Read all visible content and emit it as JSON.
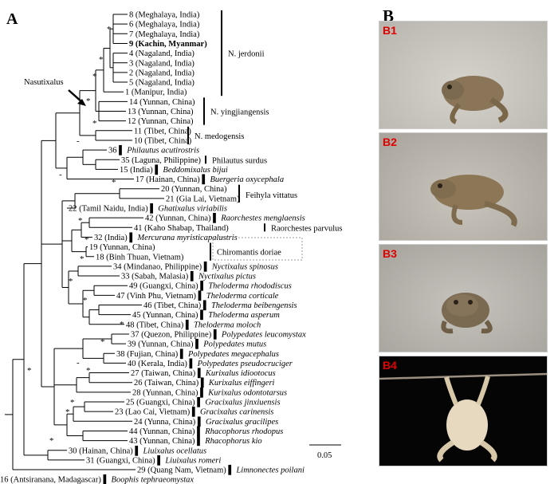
{
  "panel_a": "A",
  "panel_b": "B",
  "node_label": "Nasutixalus",
  "scale_value": "0.05",
  "support_marks": [
    "*",
    "*",
    "*",
    "*",
    "-",
    "*",
    "-",
    "*",
    "*",
    "*",
    "*",
    "*",
    "*",
    "*",
    "*",
    "-",
    "*",
    "*",
    "*",
    "*",
    "*"
  ],
  "clades": [
    {
      "name": "N. jerdonii"
    },
    {
      "name": "N. yingjiangensis"
    },
    {
      "name": "N. medogensis"
    },
    {
      "name": "Philautus surdus"
    },
    {
      "name": "Feihyla vittatus"
    },
    {
      "name": "Raorchestes parvulus"
    },
    {
      "name": "Chiromantis doriae"
    }
  ],
  "taxa": [
    {
      "label": "8 (Meghalaya, India)",
      "species": ""
    },
    {
      "label": "6 (Meghalaya, India)",
      "species": ""
    },
    {
      "label": "7 (Meghalaya, India)",
      "species": ""
    },
    {
      "label": "9 (Kachin, Myanmar)",
      "species": ""
    },
    {
      "label": "4 (Nagaland, India)",
      "species": ""
    },
    {
      "label": "3 (Nagaland, India)",
      "species": ""
    },
    {
      "label": "2 (Nagaland, India)",
      "species": ""
    },
    {
      "label": "5 (Nagaland, India)",
      "species": ""
    },
    {
      "label": "1 (Manipur, India)",
      "species": ""
    },
    {
      "label": "14 (Yunnan, China)",
      "species": ""
    },
    {
      "label": "13 (Yunnan, China)",
      "species": ""
    },
    {
      "label": "12 (Yunnan, China)",
      "species": ""
    },
    {
      "label": "11 (Tibet, China)",
      "species": ""
    },
    {
      "label": "10 (Tibet, China)",
      "species": ""
    },
    {
      "label": "36",
      "species": "Philautus acutirostris"
    },
    {
      "label": "35 (Laguna, Philippine)",
      "species": ""
    },
    {
      "label": "15 (India)",
      "species": "Beddomixalus bijui"
    },
    {
      "label": "17 (Hainan, China)",
      "species": "Buergeria oxycephala"
    },
    {
      "label": "20 (Yunnan, China)",
      "species": ""
    },
    {
      "label": "21 (Gia Lai, Vietnam)",
      "species": ""
    },
    {
      "label": "22 (Tamil Naidu, India)",
      "species": "Ghatixalus viriabilis"
    },
    {
      "label": "42 (Yunnan, China)",
      "species": "Raorchestes menglaensis"
    },
    {
      "label": "41 (Kaho Shabap, Thailand)",
      "species": ""
    },
    {
      "label": "32 (India)",
      "species": "Mercurana myristicapalustris"
    },
    {
      "label": "19 (Yunnan, China)",
      "species": ""
    },
    {
      "label": "18 (Binh Thuan, Vietnam)",
      "species": ""
    },
    {
      "label": "34 (Mindanao, Philippine)",
      "species": "Nyctixalus spinosus"
    },
    {
      "label": "33 (Sabah, Malasia)",
      "species": "Nyctixalus pictus"
    },
    {
      "label": "49 (Guangxi, China)",
      "species": "Theloderma rhododiscus"
    },
    {
      "label": "47 (Vinh Phu, Vietnam)",
      "species": "Theloderma corticale"
    },
    {
      "label": "46 (Tibet, China)",
      "species": "Theloderma beibengensis"
    },
    {
      "label": "45 (Yunnan, China)",
      "species": "Theloderma asperum"
    },
    {
      "label": "48 (Tibet, China)",
      "species": "Theloderma moloch"
    },
    {
      "label": "37 (Quezon, Philippine)",
      "species": "Polypedates leucomystax"
    },
    {
      "label": "39 (Yunnan, China)",
      "species": "Polypedates mutus"
    },
    {
      "label": "38 (Fujian, China)",
      "species": "Polypedates megacephalus"
    },
    {
      "label": "40 (Kerala, India)",
      "species": "Polypedates pseudocruciger"
    },
    {
      "label": "27 (Taiwan, China)",
      "species": "Kurixalus idiootocus"
    },
    {
      "label": "26 (Taiwan, China)",
      "species": "Kurixalus eiffingeri"
    },
    {
      "label": "28 (Yunnan, China)",
      "species": "Kurixalus odontotarsus"
    },
    {
      "label": "25 (Guangxi, China)",
      "species": "Gracixalus jinxiuensis"
    },
    {
      "label": "23 (Lao Cai, Vietnam)",
      "species": "Gracixalus carinensis"
    },
    {
      "label": "24 (Yunna, China)",
      "species": "Gracixalus gracilipes"
    },
    {
      "label": "44 (Yunnan, China)",
      "species": "Rhacophorus rhodopus"
    },
    {
      "label": "43 (Yunnan, China)",
      "species": "Rhacophorus kio"
    },
    {
      "label": "30 (Hainan, China)",
      "species": "Liuixalus ocellatus"
    },
    {
      "label": "31 (Guangxi, China)",
      "species": "Liuixalus romeri"
    },
    {
      "label": "29 (Quang Nam, Vietnam)",
      "species": "Limnonectes poilani"
    },
    {
      "label": "16 (Antsiranana, Madagascar)",
      "species": "Boophis tephraeomystax"
    }
  ],
  "photos": [
    {
      "label": "B1"
    },
    {
      "label": "B2"
    },
    {
      "label": "B3"
    },
    {
      "label": "B4"
    }
  ]
}
